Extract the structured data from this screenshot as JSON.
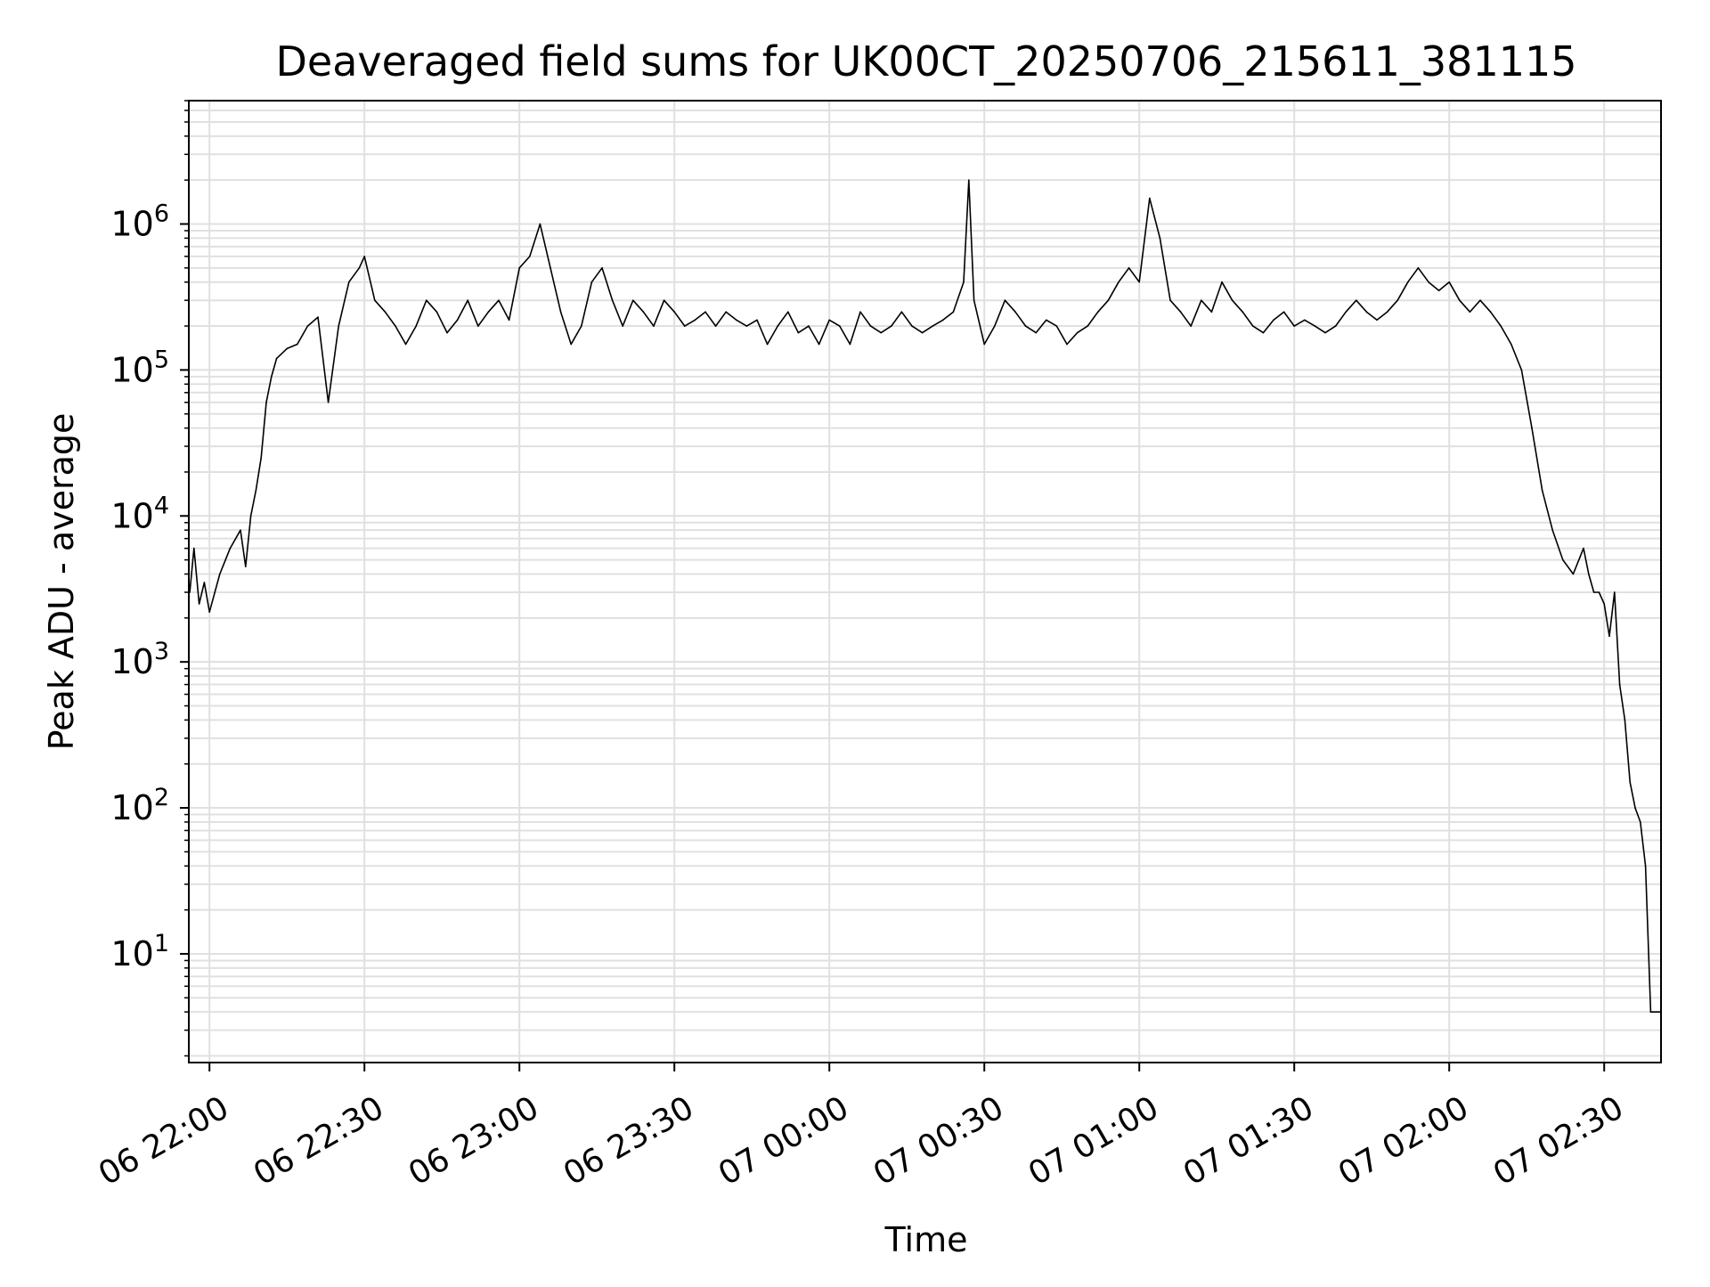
{
  "chart_data": {
    "type": "line",
    "title": "Deaveraged field sums for UK00CT_20250706_215611_381115",
    "xlabel": "Time",
    "ylabel": "Peak ADU - average",
    "xscale": "time",
    "yscale": "log",
    "xlim": [
      "2025-07-06 21:56",
      "2025-07-07 02:41"
    ],
    "ylim": [
      1.8,
      7000000
    ],
    "grid": true,
    "legend": "none",
    "line_color": "#000000",
    "grid_color": "#e0e0e0",
    "x_ticks": [
      {
        "label": "06 22:00",
        "t": "2025-07-06 22:00"
      },
      {
        "label": "06 22:30",
        "t": "2025-07-06 22:30"
      },
      {
        "label": "06 23:00",
        "t": "2025-07-06 23:00"
      },
      {
        "label": "06 23:30",
        "t": "2025-07-06 23:30"
      },
      {
        "label": "07 00:00",
        "t": "2025-07-07 00:00"
      },
      {
        "label": "07 00:30",
        "t": "2025-07-07 00:30"
      },
      {
        "label": "07 01:00",
        "t": "2025-07-07 01:00"
      },
      {
        "label": "07 01:30",
        "t": "2025-07-07 01:30"
      },
      {
        "label": "07 02:00",
        "t": "2025-07-07 02:00"
      },
      {
        "label": "07 02:30",
        "t": "2025-07-07 02:30"
      }
    ],
    "y_ticks": [
      {
        "base": "10",
        "exp": "1",
        "value": 10
      },
      {
        "base": "10",
        "exp": "2",
        "value": 100
      },
      {
        "base": "10",
        "exp": "3",
        "value": 1000
      },
      {
        "base": "10",
        "exp": "4",
        "value": 10000
      },
      {
        "base": "10",
        "exp": "5",
        "value": 100000
      },
      {
        "base": "10",
        "exp": "6",
        "value": 1000000
      }
    ],
    "series": [
      {
        "x": [
          "2025-07-06 21:56:11",
          "2025-07-06 21:57",
          "2025-07-06 21:58",
          "2025-07-06 21:59",
          "2025-07-06 22:00",
          "2025-07-06 22:02",
          "2025-07-06 22:04",
          "2025-07-06 22:06",
          "2025-07-06 22:07",
          "2025-07-06 22:08",
          "2025-07-06 22:09",
          "2025-07-06 22:10",
          "2025-07-06 22:11",
          "2025-07-06 22:12",
          "2025-07-06 22:13",
          "2025-07-06 22:15",
          "2025-07-06 22:17",
          "2025-07-06 22:19",
          "2025-07-06 22:21",
          "2025-07-06 22:23",
          "2025-07-06 22:25",
          "2025-07-06 22:27",
          "2025-07-06 22:29",
          "2025-07-06 22:30",
          "2025-07-06 22:32",
          "2025-07-06 22:34",
          "2025-07-06 22:36",
          "2025-07-06 22:38",
          "2025-07-06 22:40",
          "2025-07-06 22:42",
          "2025-07-06 22:44",
          "2025-07-06 22:46",
          "2025-07-06 22:48",
          "2025-07-06 22:50",
          "2025-07-06 22:52",
          "2025-07-06 22:54",
          "2025-07-06 22:56",
          "2025-07-06 22:58",
          "2025-07-06 23:00",
          "2025-07-06 23:02",
          "2025-07-06 23:04",
          "2025-07-06 23:06",
          "2025-07-06 23:08",
          "2025-07-06 23:10",
          "2025-07-06 23:12",
          "2025-07-06 23:14",
          "2025-07-06 23:16",
          "2025-07-06 23:18",
          "2025-07-06 23:20",
          "2025-07-06 23:22",
          "2025-07-06 23:24",
          "2025-07-06 23:26",
          "2025-07-06 23:28",
          "2025-07-06 23:30",
          "2025-07-06 23:32",
          "2025-07-06 23:34",
          "2025-07-06 23:36",
          "2025-07-06 23:38",
          "2025-07-06 23:40",
          "2025-07-06 23:42",
          "2025-07-06 23:44",
          "2025-07-06 23:46",
          "2025-07-06 23:48",
          "2025-07-06 23:50",
          "2025-07-06 23:52",
          "2025-07-06 23:54",
          "2025-07-06 23:56",
          "2025-07-06 23:58",
          "2025-07-07 00:00",
          "2025-07-07 00:02",
          "2025-07-07 00:04",
          "2025-07-07 00:06",
          "2025-07-07 00:08",
          "2025-07-07 00:10",
          "2025-07-07 00:12",
          "2025-07-07 00:14",
          "2025-07-07 00:16",
          "2025-07-07 00:18",
          "2025-07-07 00:20",
          "2025-07-07 00:22",
          "2025-07-07 00:24",
          "2025-07-07 00:26",
          "2025-07-07 00:27",
          "2025-07-07 00:28",
          "2025-07-07 00:30",
          "2025-07-07 00:32",
          "2025-07-07 00:34",
          "2025-07-07 00:36",
          "2025-07-07 00:38",
          "2025-07-07 00:40",
          "2025-07-07 00:42",
          "2025-07-07 00:44",
          "2025-07-07 00:46",
          "2025-07-07 00:48",
          "2025-07-07 00:50",
          "2025-07-07 00:52",
          "2025-07-07 00:54",
          "2025-07-07 00:56",
          "2025-07-07 00:58",
          "2025-07-07 01:00",
          "2025-07-07 01:02",
          "2025-07-07 01:04",
          "2025-07-07 01:06",
          "2025-07-07 01:08",
          "2025-07-07 01:10",
          "2025-07-07 01:12",
          "2025-07-07 01:14",
          "2025-07-07 01:16",
          "2025-07-07 01:18",
          "2025-07-07 01:20",
          "2025-07-07 01:22",
          "2025-07-07 01:24",
          "2025-07-07 01:26",
          "2025-07-07 01:28",
          "2025-07-07 01:30",
          "2025-07-07 01:32",
          "2025-07-07 01:34",
          "2025-07-07 01:36",
          "2025-07-07 01:38",
          "2025-07-07 01:40",
          "2025-07-07 01:42",
          "2025-07-07 01:44",
          "2025-07-07 01:46",
          "2025-07-07 01:48",
          "2025-07-07 01:50",
          "2025-07-07 01:52",
          "2025-07-07 01:54",
          "2025-07-07 01:56",
          "2025-07-07 01:58",
          "2025-07-07 02:00",
          "2025-07-07 02:02",
          "2025-07-07 02:04",
          "2025-07-07 02:06",
          "2025-07-07 02:08",
          "2025-07-07 02:10",
          "2025-07-07 02:12",
          "2025-07-07 02:14",
          "2025-07-07 02:16",
          "2025-07-07 02:18",
          "2025-07-07 02:20",
          "2025-07-07 02:22",
          "2025-07-07 02:24",
          "2025-07-07 02:26",
          "2025-07-07 02:27",
          "2025-07-07 02:28",
          "2025-07-07 02:29",
          "2025-07-07 02:30",
          "2025-07-07 02:31",
          "2025-07-07 02:32",
          "2025-07-07 02:33",
          "2025-07-07 02:34",
          "2025-07-07 02:35",
          "2025-07-07 02:36",
          "2025-07-07 02:37",
          "2025-07-07 02:38",
          "2025-07-07 02:39",
          "2025-07-07 02:40",
          "2025-07-07 02:41"
        ],
        "y": [
          3000,
          6000,
          2500,
          3500,
          2200,
          4000,
          6000,
          8000,
          4500,
          10000,
          15000,
          25000,
          60000,
          90000,
          120000,
          140000,
          150000,
          200000,
          230000,
          60000,
          200000,
          400000,
          500000,
          600000,
          300000,
          250000,
          200000,
          150000,
          200000,
          300000,
          250000,
          180000,
          220000,
          300000,
          200000,
          250000,
          300000,
          220000,
          500000,
          600000,
          1000000,
          500000,
          250000,
          150000,
          200000,
          400000,
          500000,
          300000,
          200000,
          300000,
          250000,
          200000,
          300000,
          250000,
          200000,
          220000,
          250000,
          200000,
          250000,
          220000,
          200000,
          220000,
          150000,
          200000,
          250000,
          180000,
          200000,
          150000,
          220000,
          200000,
          150000,
          250000,
          200000,
          180000,
          200000,
          250000,
          200000,
          180000,
          200000,
          220000,
          250000,
          400000,
          2000000,
          300000,
          150000,
          200000,
          300000,
          250000,
          200000,
          180000,
          220000,
          200000,
          150000,
          180000,
          200000,
          250000,
          300000,
          400000,
          500000,
          400000,
          1500000,
          800000,
          300000,
          250000,
          200000,
          300000,
          250000,
          400000,
          300000,
          250000,
          200000,
          180000,
          220000,
          250000,
          200000,
          220000,
          200000,
          180000,
          200000,
          250000,
          300000,
          250000,
          220000,
          250000,
          300000,
          400000,
          500000,
          400000,
          350000,
          400000,
          300000,
          250000,
          300000,
          250000,
          200000,
          150000,
          100000,
          40000,
          15000,
          8000,
          5000,
          4000,
          6000,
          4000,
          3000,
          3000,
          2500,
          1500,
          3000,
          700,
          400,
          150,
          100,
          80,
          40,
          4,
          4,
          4
        ]
      }
    ]
  }
}
